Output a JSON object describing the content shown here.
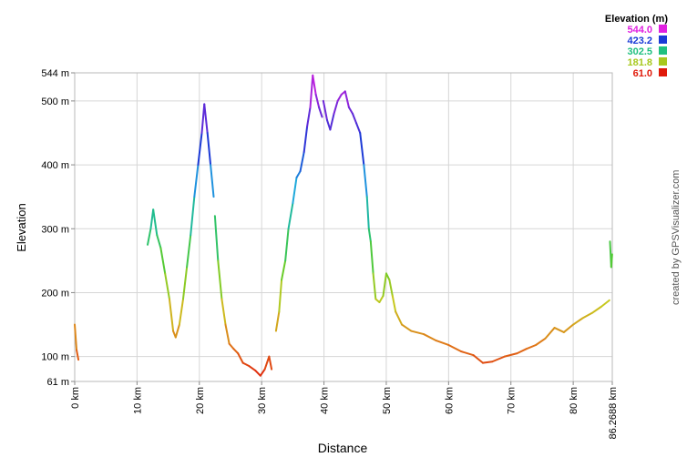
{
  "chart_data": {
    "type": "line",
    "xlabel": "Distance",
    "ylabel": "Elevation",
    "x_unit": "km",
    "y_unit": "m",
    "xlim": [
      0,
      86.2688
    ],
    "ylim": [
      61,
      544
    ],
    "grid": true,
    "x_ticks": [
      {
        "value": 0,
        "label": "0 km"
      },
      {
        "value": 10,
        "label": "10 km"
      },
      {
        "value": 20,
        "label": "20 km"
      },
      {
        "value": 30,
        "label": "30 km"
      },
      {
        "value": 40,
        "label": "40 km"
      },
      {
        "value": 50,
        "label": "50 km"
      },
      {
        "value": 60,
        "label": "60 km"
      },
      {
        "value": 70,
        "label": "70 km"
      },
      {
        "value": 80,
        "label": "80 km"
      },
      {
        "value": 86.2688,
        "label": "86.2688 km"
      }
    ],
    "y_ticks": [
      {
        "value": 61,
        "label": "61 m"
      },
      {
        "value": 100,
        "label": "100 m"
      },
      {
        "value": 200,
        "label": "200 m"
      },
      {
        "value": 300,
        "label": "300 m"
      },
      {
        "value": 400,
        "label": "400 m"
      },
      {
        "value": 500,
        "label": "500 m"
      },
      {
        "value": 544,
        "label": "544 m"
      }
    ],
    "legend": {
      "title": "Elevation (m)",
      "placement": "top-right",
      "entries": [
        {
          "label": "544.0",
          "color": "#e020e0"
        },
        {
          "label": "423.2",
          "color": "#1a3bd6"
        },
        {
          "label": "302.5",
          "color": "#20c080"
        },
        {
          "label": "181.8",
          "color": "#a8c81e"
        },
        {
          "label": "61.0",
          "color": "#e01a0a"
        }
      ]
    },
    "color_scale": {
      "stops": [
        {
          "value": 61,
          "color": "#e01a0a"
        },
        {
          "value": 120,
          "color": "#e07a1a"
        },
        {
          "value": 181.8,
          "color": "#c8c81e"
        },
        {
          "value": 242,
          "color": "#5ccc2a"
        },
        {
          "value": 302.5,
          "color": "#20c080"
        },
        {
          "value": 363,
          "color": "#20a8e0"
        },
        {
          "value": 423.2,
          "color": "#1a3bd6"
        },
        {
          "value": 483,
          "color": "#6a28d8"
        },
        {
          "value": 544,
          "color": "#e020e0"
        }
      ]
    },
    "segments": [
      [
        [
          0,
          150
        ],
        [
          0.3,
          110
        ],
        [
          0.6,
          95
        ]
      ],
      [
        [
          11.7,
          275
        ],
        [
          12.2,
          300
        ],
        [
          12.6,
          330
        ],
        [
          13.2,
          290
        ],
        [
          13.8,
          270
        ],
        [
          14.5,
          230
        ],
        [
          15.2,
          190
        ],
        [
          15.8,
          140
        ],
        [
          16.2,
          130
        ],
        [
          16.8,
          150
        ],
        [
          17.4,
          190
        ],
        [
          18.0,
          240
        ],
        [
          18.6,
          290
        ],
        [
          19.2,
          350
        ],
        [
          19.8,
          400
        ],
        [
          20.4,
          450
        ],
        [
          20.8,
          495
        ],
        [
          21.3,
          450
        ],
        [
          21.8,
          400
        ],
        [
          22.3,
          350
        ]
      ],
      [
        [
          22.5,
          320
        ],
        [
          23.0,
          250
        ],
        [
          23.6,
          190
        ],
        [
          24.2,
          150
        ],
        [
          24.8,
          120
        ],
        [
          25.5,
          112
        ],
        [
          26.2,
          105
        ],
        [
          27.0,
          90
        ],
        [
          28.0,
          85
        ],
        [
          29.0,
          78
        ],
        [
          29.8,
          70
        ],
        [
          30.5,
          80
        ],
        [
          31.2,
          100
        ],
        [
          31.6,
          80
        ]
      ],
      [
        [
          32.3,
          140
        ],
        [
          32.8,
          170
        ],
        [
          33.2,
          220
        ],
        [
          33.8,
          250
        ],
        [
          34.3,
          300
        ],
        [
          35.0,
          340
        ],
        [
          35.6,
          380
        ],
        [
          36.2,
          390
        ],
        [
          36.8,
          420
        ],
        [
          37.3,
          460
        ],
        [
          37.8,
          490
        ],
        [
          38.2,
          540
        ],
        [
          38.7,
          510
        ],
        [
          39.2,
          490
        ],
        [
          39.7,
          475
        ]
      ],
      [
        [
          39.9,
          500
        ],
        [
          40.5,
          470
        ],
        [
          41.0,
          455
        ],
        [
          41.6,
          480
        ],
        [
          42.2,
          500
        ],
        [
          42.8,
          510
        ],
        [
          43.4,
          515
        ],
        [
          44.0,
          490
        ],
        [
          44.6,
          480
        ],
        [
          45.2,
          465
        ],
        [
          45.8,
          450
        ],
        [
          46.4,
          400
        ],
        [
          46.9,
          350
        ],
        [
          47.2,
          300
        ],
        [
          47.5,
          280
        ],
        [
          47.9,
          230
        ],
        [
          48.3,
          190
        ],
        [
          48.9,
          185
        ],
        [
          49.5,
          195
        ],
        [
          50.0,
          230
        ],
        [
          50.5,
          220
        ],
        [
          51.0,
          195
        ],
        [
          51.5,
          170
        ],
        [
          52.5,
          150
        ],
        [
          54.0,
          140
        ],
        [
          56.0,
          135
        ],
        [
          58.0,
          125
        ],
        [
          60.0,
          118
        ],
        [
          62.0,
          108
        ],
        [
          64.0,
          102
        ],
        [
          65.5,
          90
        ],
        [
          67.0,
          92
        ],
        [
          69.0,
          100
        ],
        [
          71.0,
          105
        ],
        [
          72.5,
          112
        ],
        [
          74.0,
          118
        ],
        [
          75.5,
          128
        ],
        [
          77.0,
          145
        ],
        [
          78.5,
          138
        ],
        [
          80.0,
          150
        ],
        [
          81.5,
          160
        ],
        [
          83.0,
          168
        ],
        [
          84.5,
          178
        ],
        [
          85.8,
          188
        ]
      ],
      [
        [
          85.9,
          280
        ],
        [
          86.1,
          240
        ],
        [
          86.25,
          260
        ]
      ]
    ]
  },
  "watermark": "created by GPSVisualizer.com"
}
